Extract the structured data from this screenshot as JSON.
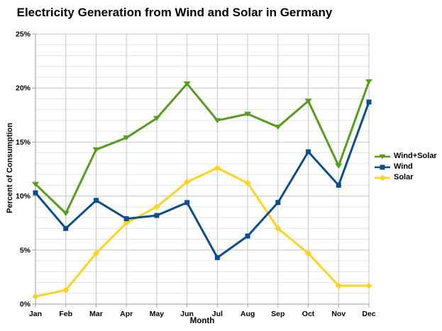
{
  "title": "Electricity Generation from Wind and Solar in Germany",
  "chart_data": {
    "type": "line",
    "title": "Electricity Generation from Wind and Solar in Germany",
    "xlabel": "Month",
    "ylabel": "Percent of Consumption",
    "categories": [
      "Jan",
      "Feb",
      "Mar",
      "Apr",
      "May",
      "Jun",
      "Jul",
      "Aug",
      "Sep",
      "Oct",
      "Nov",
      "Dec"
    ],
    "series": [
      {
        "name": "Wind+Solar",
        "color": "#579D1C",
        "marker": "triangle-down",
        "values": [
          11.1,
          8.4,
          14.3,
          15.4,
          17.2,
          20.4,
          17.0,
          17.6,
          16.4,
          18.8,
          12.8,
          20.6
        ]
      },
      {
        "name": "Wind",
        "color": "#0B4E8D",
        "marker": "square",
        "values": [
          10.3,
          7.0,
          9.6,
          7.9,
          8.2,
          9.4,
          4.3,
          6.3,
          9.4,
          14.1,
          11.0,
          18.7
        ]
      },
      {
        "name": "Solar",
        "color": "#FFD320",
        "marker": "diamond",
        "values": [
          0.7,
          1.3,
          4.7,
          7.5,
          9.0,
          11.3,
          12.6,
          11.2,
          7.0,
          4.7,
          1.7,
          1.7
        ]
      }
    ],
    "ylim": [
      0,
      25
    ],
    "y_major_step": 5,
    "y_minor_step": 1,
    "y_tick_labels": [
      "0%",
      "5%",
      "10%",
      "15%",
      "20%",
      "25%"
    ],
    "grid": true,
    "legend_position": "right"
  },
  "style_colors": {
    "minor_grid": "#e3e3e3",
    "major_grid": "#c6c6c6",
    "vertical_grid": "#c6c6c6",
    "axis_line": "#9b9b9b",
    "background": "#ffffff",
    "text": "#000000"
  }
}
